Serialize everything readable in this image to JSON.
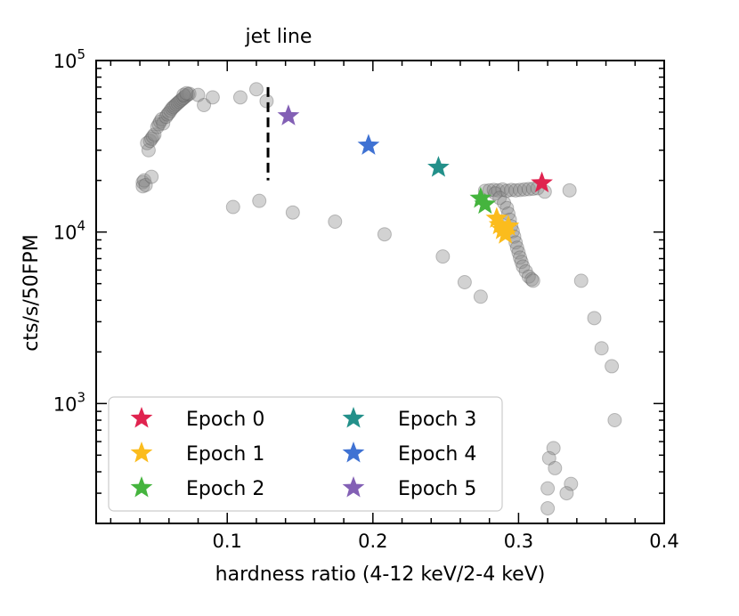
{
  "chart_data": {
    "type": "scatter",
    "title": "",
    "xlabel": "hardness ratio (4-12 keV/2-4 keV)",
    "ylabel": "cts/s/50FPM",
    "xlim": [
      0.01,
      0.4
    ],
    "ylim": [
      200,
      100000
    ],
    "yscale": "log",
    "xticks": [
      0.1,
      0.2,
      0.3,
      0.4
    ],
    "xtick_labels": [
      "0.1",
      "0.2",
      "0.3",
      "0.4"
    ],
    "yticks": [
      1000,
      10000,
      100000
    ],
    "ytick_base": "10",
    "ytick_exponents": [
      "3",
      "4",
      "5"
    ],
    "annotation": {
      "text": "jet line",
      "x": 0.128,
      "y_range": [
        20000,
        70000
      ],
      "style": "dashed"
    },
    "background_series": {
      "name": "monitoring",
      "color": "#888888",
      "points": [
        [
          0.042,
          19500
        ],
        [
          0.042,
          18500
        ],
        [
          0.043,
          20000
        ],
        [
          0.044,
          18800
        ],
        [
          0.048,
          21000
        ],
        [
          0.046,
          30000
        ],
        [
          0.045,
          33000
        ],
        [
          0.047,
          34000
        ],
        [
          0.048,
          35000
        ],
        [
          0.049,
          36000
        ],
        [
          0.05,
          37000
        ],
        [
          0.052,
          41000
        ],
        [
          0.053,
          42500
        ],
        [
          0.054,
          44000
        ],
        [
          0.055,
          45500
        ],
        [
          0.056,
          43000
        ],
        [
          0.058,
          47000
        ],
        [
          0.059,
          48500
        ],
        [
          0.06,
          49500
        ],
        [
          0.061,
          51000
        ],
        [
          0.062,
          52500
        ],
        [
          0.063,
          53500
        ],
        [
          0.064,
          54500
        ],
        [
          0.065,
          55500
        ],
        [
          0.066,
          56500
        ],
        [
          0.067,
          57500
        ],
        [
          0.068,
          58500
        ],
        [
          0.069,
          59500
        ],
        [
          0.07,
          60500
        ],
        [
          0.071,
          61500
        ],
        [
          0.072,
          62500
        ],
        [
          0.073,
          63500
        ],
        [
          0.074,
          64000
        ],
        [
          0.07,
          63000
        ],
        [
          0.072,
          64500
        ],
        [
          0.08,
          63000
        ],
        [
          0.084,
          55000
        ],
        [
          0.09,
          61000
        ],
        [
          0.104,
          14000
        ],
        [
          0.109,
          61000
        ],
        [
          0.12,
          68000
        ],
        [
          0.122,
          15200
        ],
        [
          0.127,
          58000
        ],
        [
          0.145,
          13000
        ],
        [
          0.174,
          11500
        ],
        [
          0.208,
          9700
        ],
        [
          0.248,
          7200
        ],
        [
          0.263,
          5100
        ],
        [
          0.274,
          4200
        ],
        [
          0.277,
          17400
        ],
        [
          0.28,
          17500
        ],
        [
          0.283,
          17600
        ],
        [
          0.286,
          17500
        ],
        [
          0.289,
          17700
        ],
        [
          0.292,
          17400
        ],
        [
          0.295,
          17600
        ],
        [
          0.298,
          17500
        ],
        [
          0.301,
          17600
        ],
        [
          0.304,
          17700
        ],
        [
          0.307,
          17800
        ],
        [
          0.31,
          17900
        ],
        [
          0.313,
          18000
        ],
        [
          0.318,
          17200
        ],
        [
          0.284,
          16800
        ],
        [
          0.287,
          15800
        ],
        [
          0.29,
          14800
        ],
        [
          0.292,
          13800
        ],
        [
          0.293,
          12800
        ],
        [
          0.294,
          11800
        ],
        [
          0.295,
          10800
        ],
        [
          0.296,
          10100
        ],
        [
          0.297,
          9400
        ],
        [
          0.298,
          8700
        ],
        [
          0.299,
          8100
        ],
        [
          0.3,
          7600
        ],
        [
          0.301,
          7100
        ],
        [
          0.302,
          6700
        ],
        [
          0.303,
          6300
        ],
        [
          0.305,
          5900
        ],
        [
          0.307,
          5500
        ],
        [
          0.309,
          5300
        ],
        [
          0.31,
          5200
        ],
        [
          0.335,
          17500
        ],
        [
          0.343,
          5200
        ],
        [
          0.352,
          3150
        ],
        [
          0.357,
          2100
        ],
        [
          0.364,
          1650
        ],
        [
          0.366,
          800
        ],
        [
          0.324,
          550
        ],
        [
          0.321,
          480
        ],
        [
          0.325,
          420
        ],
        [
          0.336,
          340
        ],
        [
          0.333,
          300
        ],
        [
          0.32,
          320
        ],
        [
          0.32,
          245
        ]
      ]
    },
    "series": [
      {
        "name": "Epoch 0",
        "color": "#e0234f",
        "points": [
          [
            0.316,
            19300
          ]
        ]
      },
      {
        "name": "Epoch 1",
        "color": "#fbbc1d",
        "points": [
          [
            0.285,
            12000
          ],
          [
            0.287,
            11000
          ],
          [
            0.289,
            10300
          ],
          [
            0.291,
            9700
          ],
          [
            0.293,
            10800
          ]
        ]
      },
      {
        "name": "Epoch 2",
        "color": "#45b43e",
        "points": [
          [
            0.274,
            15700
          ],
          [
            0.277,
            14500
          ]
        ]
      },
      {
        "name": "Epoch 3",
        "color": "#23908a",
        "points": [
          [
            0.245,
            23800
          ]
        ]
      },
      {
        "name": "Epoch 4",
        "color": "#3f72d3",
        "points": [
          [
            0.197,
            32000
          ]
        ]
      },
      {
        "name": "Epoch 5",
        "color": "#8360b5",
        "points": [
          [
            0.142,
            47500
          ]
        ]
      }
    ],
    "legend": {
      "position": "bottom-left",
      "columns": 2
    }
  }
}
